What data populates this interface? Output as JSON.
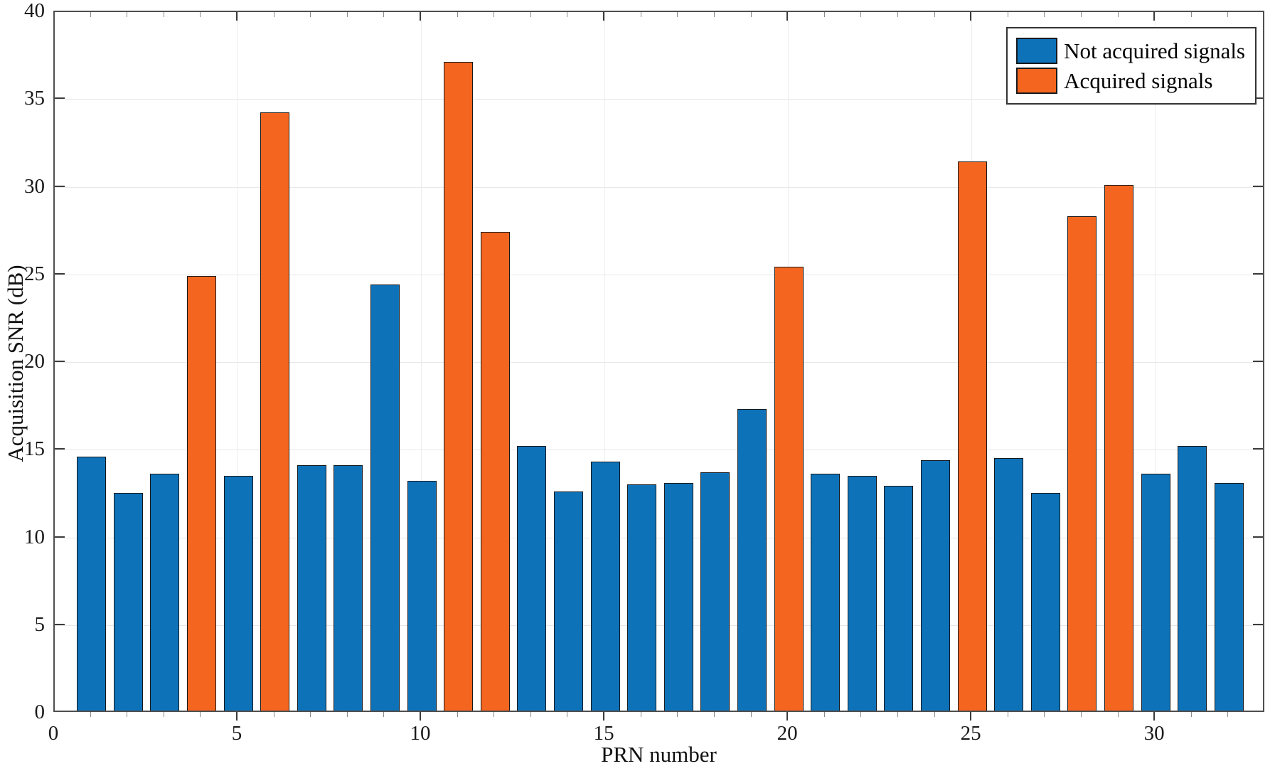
{
  "chart_data": {
    "type": "bar",
    "title": "",
    "xlabel": "PRN number",
    "ylabel": "Acquisition SNR (dB)",
    "xlim": [
      0,
      33
    ],
    "ylim": [
      0,
      40
    ],
    "xticks": [
      0,
      5,
      10,
      15,
      20,
      25,
      30
    ],
    "yticks": [
      0,
      5,
      10,
      15,
      20,
      25,
      30,
      35,
      40
    ],
    "grid": true,
    "legend": {
      "position": "northeast",
      "entries": [
        {
          "label": "Not acquired signals",
          "color": "#0e72b9"
        },
        {
          "label": "Acquired signals",
          "color": "#f4661f"
        }
      ]
    },
    "series": [
      {
        "name": "Not acquired signals",
        "color": "#0e72b9"
      },
      {
        "name": "Acquired signals",
        "color": "#f4661f"
      }
    ],
    "bars": [
      {
        "prn": 1,
        "snr": 14.5,
        "acquired": false
      },
      {
        "prn": 2,
        "snr": 12.4,
        "acquired": false
      },
      {
        "prn": 3,
        "snr": 13.5,
        "acquired": false
      },
      {
        "prn": 4,
        "snr": 24.8,
        "acquired": true
      },
      {
        "prn": 5,
        "snr": 13.4,
        "acquired": false
      },
      {
        "prn": 6,
        "snr": 34.1,
        "acquired": true
      },
      {
        "prn": 7,
        "snr": 14.0,
        "acquired": false
      },
      {
        "prn": 8,
        "snr": 14.0,
        "acquired": false
      },
      {
        "prn": 9,
        "snr": 24.3,
        "acquired": false
      },
      {
        "prn": 10,
        "snr": 13.1,
        "acquired": false
      },
      {
        "prn": 11,
        "snr": 37.0,
        "acquired": true
      },
      {
        "prn": 12,
        "snr": 27.3,
        "acquired": true
      },
      {
        "prn": 13,
        "snr": 15.1,
        "acquired": false
      },
      {
        "prn": 14,
        "snr": 12.5,
        "acquired": false
      },
      {
        "prn": 15,
        "snr": 14.2,
        "acquired": false
      },
      {
        "prn": 16,
        "snr": 12.9,
        "acquired": false
      },
      {
        "prn": 17,
        "snr": 13.0,
        "acquired": false
      },
      {
        "prn": 18,
        "snr": 13.6,
        "acquired": false
      },
      {
        "prn": 19,
        "snr": 17.2,
        "acquired": false
      },
      {
        "prn": 20,
        "snr": 25.3,
        "acquired": true
      },
      {
        "prn": 21,
        "snr": 13.5,
        "acquired": false
      },
      {
        "prn": 22,
        "snr": 13.4,
        "acquired": false
      },
      {
        "prn": 23,
        "snr": 12.8,
        "acquired": false
      },
      {
        "prn": 24,
        "snr": 14.3,
        "acquired": false
      },
      {
        "prn": 25,
        "snr": 31.3,
        "acquired": true
      },
      {
        "prn": 26,
        "snr": 14.4,
        "acquired": false
      },
      {
        "prn": 27,
        "snr": 12.4,
        "acquired": false
      },
      {
        "prn": 28,
        "snr": 28.2,
        "acquired": true
      },
      {
        "prn": 29,
        "snr": 30.0,
        "acquired": true
      },
      {
        "prn": 30,
        "snr": 13.5,
        "acquired": false
      },
      {
        "prn": 31,
        "snr": 15.1,
        "acquired": false
      },
      {
        "prn": 32,
        "snr": 13.0,
        "acquired": false
      }
    ]
  }
}
